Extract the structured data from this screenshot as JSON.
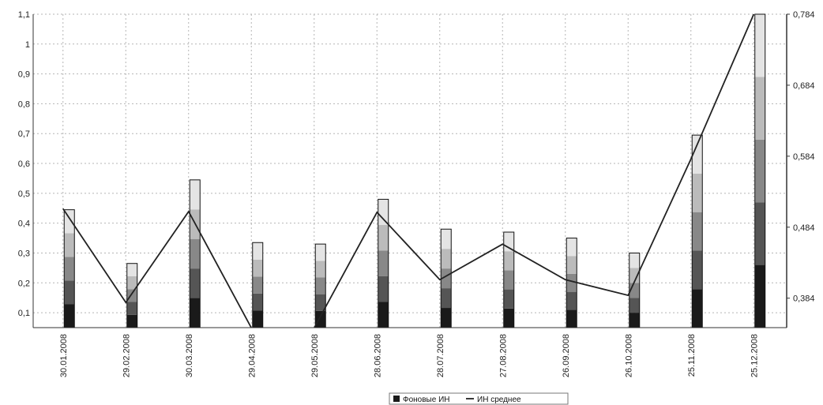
{
  "chart_data": {
    "type": "bar",
    "title": "",
    "xlabel": "",
    "ylabel": "",
    "categories": [
      "30.01.2008",
      "29.02.2008",
      "30.03.2008",
      "29.04.2008",
      "29.05.2008",
      "28.06.2008",
      "28.07.2008",
      "27.08.2008",
      "26.09.2008",
      "26.10.2008",
      "25.11.2008",
      "25.12.2008"
    ],
    "y_left": {
      "ylim": [
        0.05,
        1.1
      ],
      "ticks": [
        0.1,
        0.2,
        0.3,
        0.4,
        0.5,
        0.6,
        0.7,
        0.8,
        0.9,
        1.0,
        1.1
      ],
      "tick_labels": [
        "0,1",
        "0,2",
        "0,3",
        "0,4",
        "0,5",
        "0,6",
        "0,7",
        "0,8",
        "0,9",
        "1",
        "1,1"
      ]
    },
    "y_right": {
      "ylim": [
        0.3425,
        0.784
      ],
      "ticks": [
        0.384,
        0.484,
        0.584,
        0.684,
        0.784
      ],
      "tick_labels": [
        "0,384",
        "0,484",
        "0,584",
        "0,684",
        "0,784"
      ]
    },
    "bar_totals": [
      0.445,
      0.265,
      0.545,
      0.335,
      0.33,
      0.48,
      0.38,
      0.37,
      0.35,
      0.3,
      0.695,
      1.1
    ],
    "bar_segment_fractions": [
      0.2,
      0.2,
      0.2,
      0.2,
      0.2
    ],
    "bar_segment_colors": [
      "#1a1a1a",
      "#555555",
      "#888888",
      "#bbbbbb",
      "#e4e4e4"
    ],
    "series": [
      {
        "name": "Фоновые ИН",
        "type": "bar",
        "axis": "left",
        "color": "#1a1a1a",
        "values": [
          0.445,
          0.265,
          0.545,
          0.335,
          0.33,
          0.48,
          0.38,
          0.37,
          0.35,
          0.3,
          0.695,
          1.1
        ]
      },
      {
        "name": "ИН среднее",
        "type": "line",
        "axis": "right",
        "color": "#222222",
        "values": [
          0.51,
          0.378,
          0.506,
          0.342,
          0.342,
          0.505,
          0.41,
          0.46,
          0.41,
          0.388,
          0.58,
          0.784
        ]
      }
    ],
    "grid": true,
    "legend_position": "bottom-center",
    "legend": [
      "Фоновые ИН",
      "ИН среднее"
    ]
  }
}
